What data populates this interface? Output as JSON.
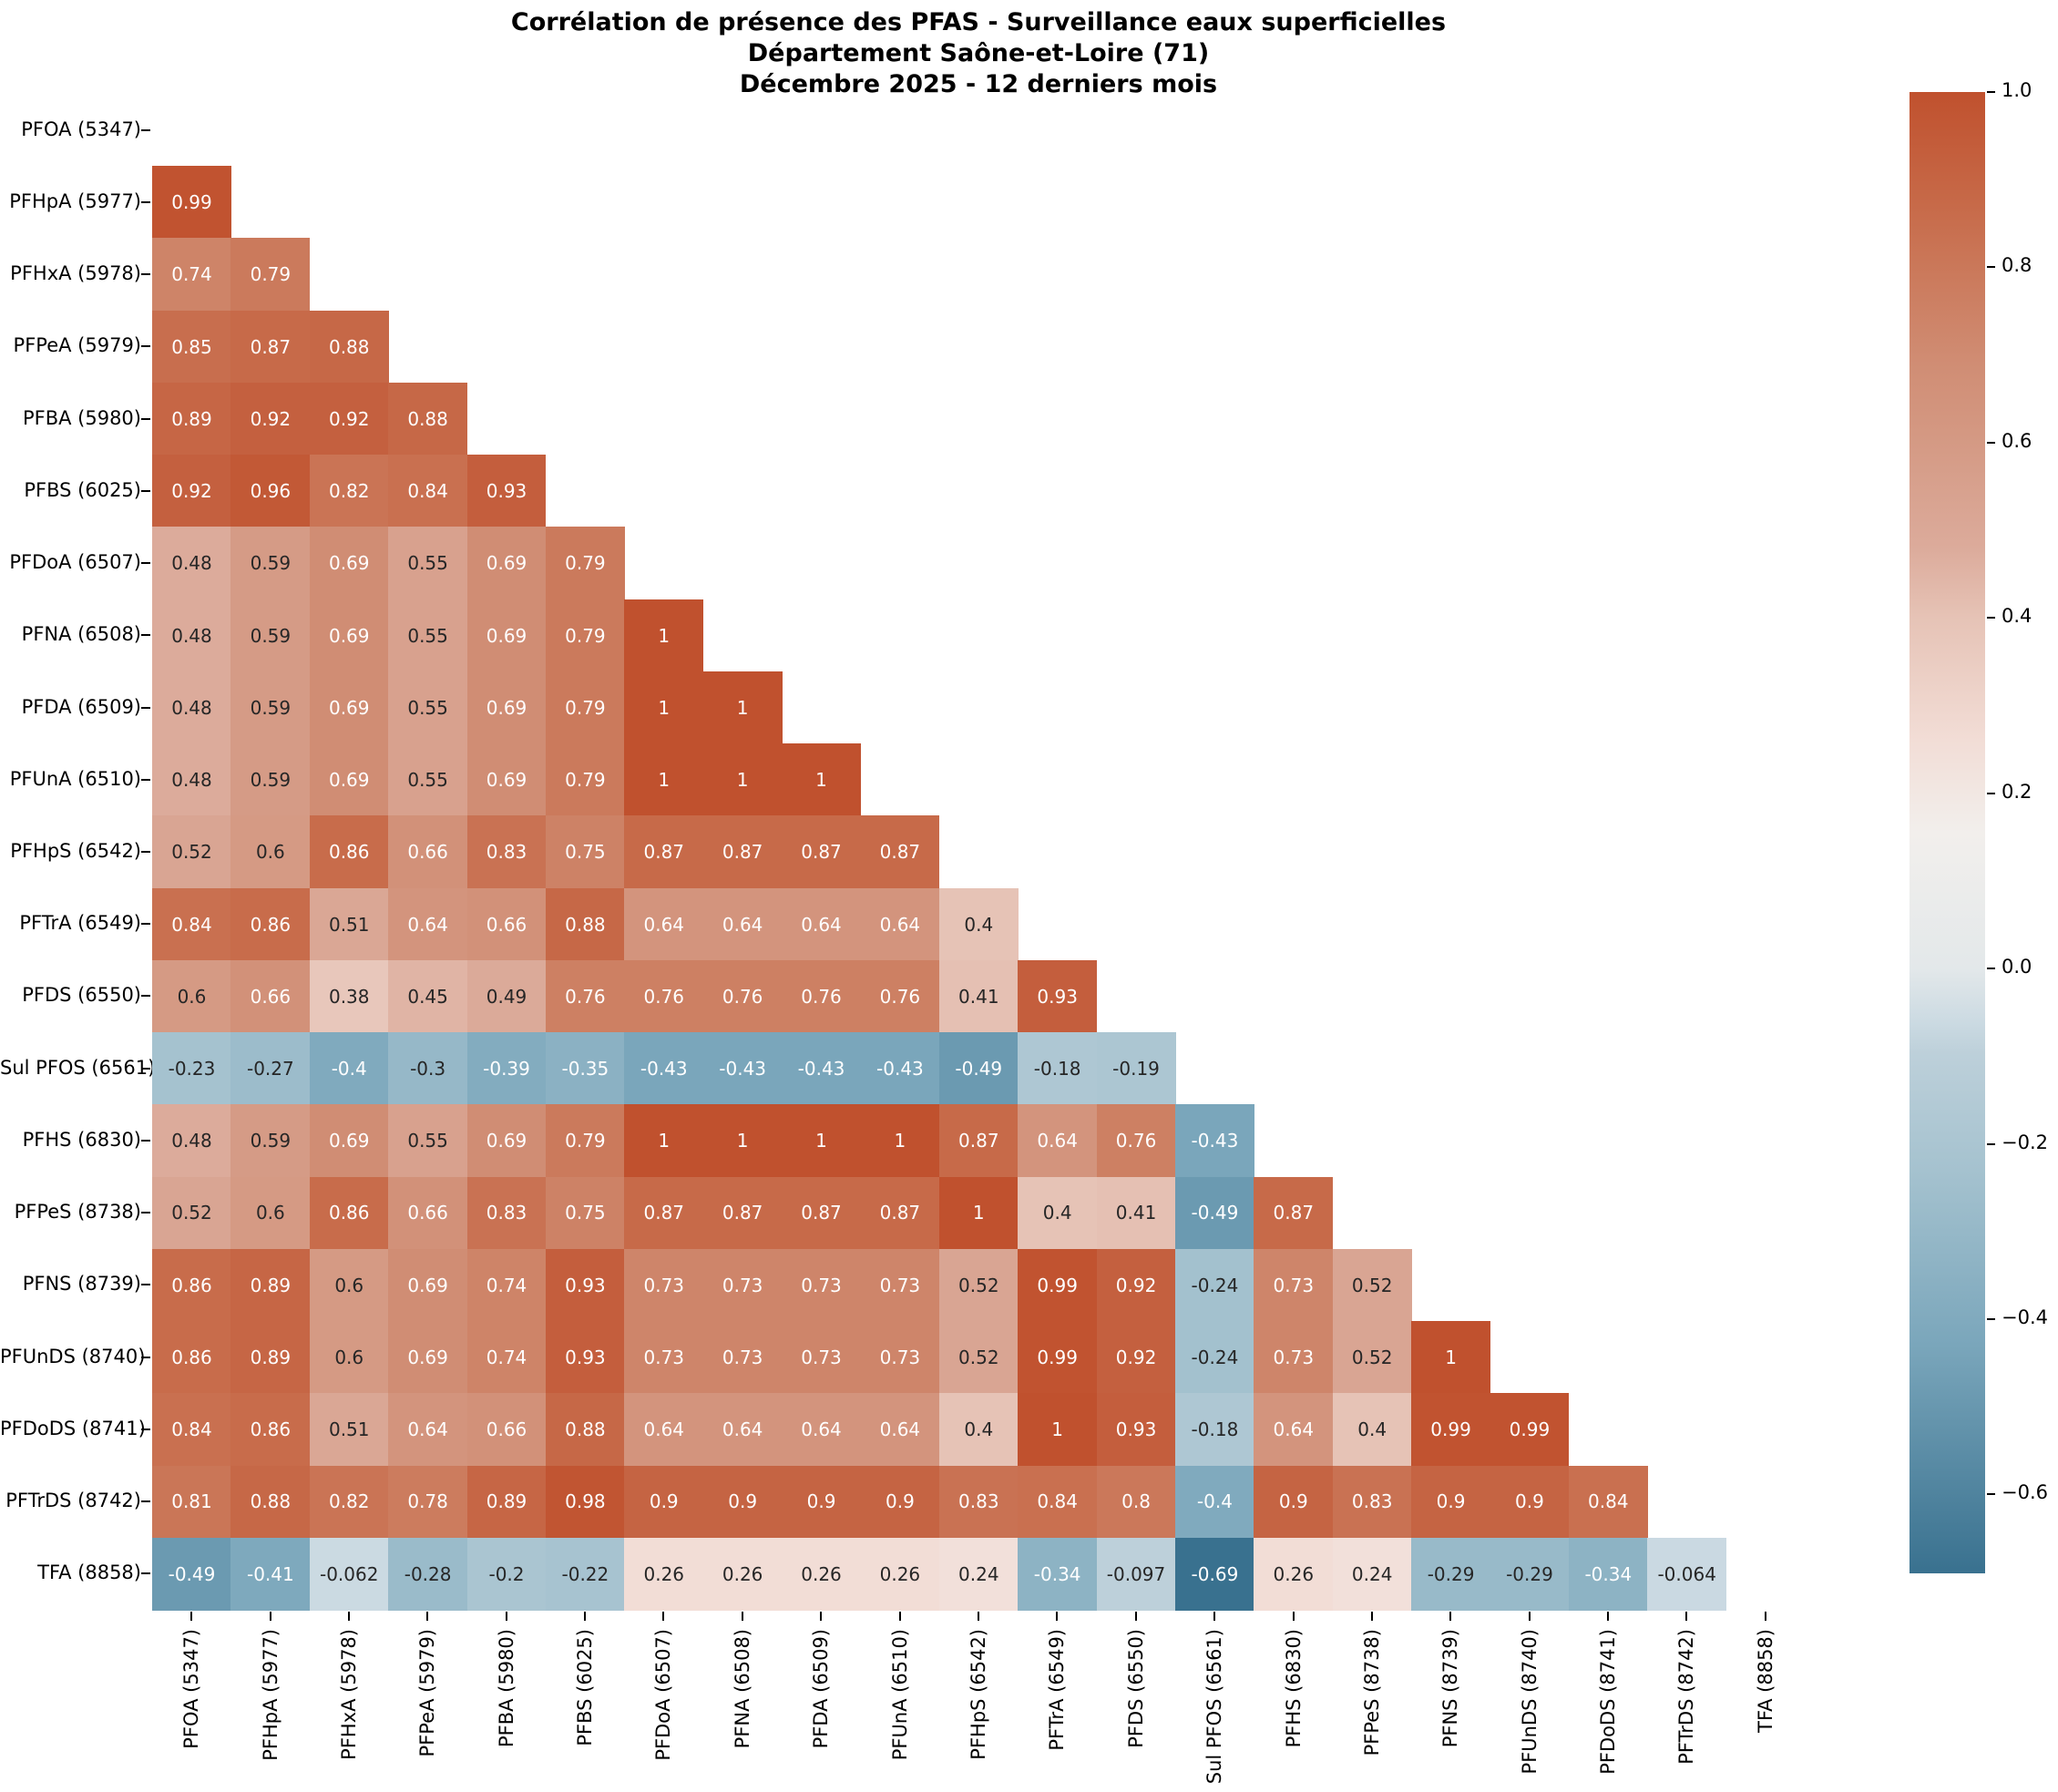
{
  "title": {
    "line1": "Corrélation de présence des PFAS - Surveillance eaux superficielles",
    "line2": "Département Saône-et-Loire (71)",
    "line3": "Décembre 2025 - 12 derniers mois"
  },
  "chart_data": {
    "type": "heatmap",
    "subtype": "correlation-matrix-lower-triangle",
    "title": "Corrélation de présence des PFAS - Surveillance eaux superficielles\nDépartement Saône-et-Loire (71)\nDécembre 2025 - 12 derniers mois",
    "labels": [
      "PFOA (5347)",
      "PFHpA (5977)",
      "PFHxA (5978)",
      "PFPeA (5979)",
      "PFBA (5980)",
      "PFBS (6025)",
      "PFDoA (6507)",
      "PFNA (6508)",
      "PFDA (6509)",
      "PFUnA (6510)",
      "PFHpS (6542)",
      "PFTrA (6549)",
      "PFDS (6550)",
      "Sul PFOS (6561)",
      "PFHS (6830)",
      "PFPeS (8738)",
      "PFNS (8739)",
      "PFUnDS (8740)",
      "PFDoDS (8741)",
      "PFTrDS (8742)",
      "TFA (8858)"
    ],
    "rows": [
      {
        "label": "PFOA (5347)",
        "values": []
      },
      {
        "label": "PFHpA (5977)",
        "values": [
          0.99
        ]
      },
      {
        "label": "PFHxA (5978)",
        "values": [
          0.74,
          0.79
        ]
      },
      {
        "label": "PFPeA (5979)",
        "values": [
          0.85,
          0.87,
          0.88
        ]
      },
      {
        "label": "PFBA (5980)",
        "values": [
          0.89,
          0.92,
          0.92,
          0.88
        ]
      },
      {
        "label": "PFBS (6025)",
        "values": [
          0.92,
          0.96,
          0.82,
          0.84,
          0.93
        ]
      },
      {
        "label": "PFDoA (6507)",
        "values": [
          0.48,
          0.59,
          0.69,
          0.55,
          0.69,
          0.79
        ]
      },
      {
        "label": "PFNA (6508)",
        "values": [
          0.48,
          0.59,
          0.69,
          0.55,
          0.69,
          0.79,
          1
        ]
      },
      {
        "label": "PFDA (6509)",
        "values": [
          0.48,
          0.59,
          0.69,
          0.55,
          0.69,
          0.79,
          1,
          1
        ]
      },
      {
        "label": "PFUnA (6510)",
        "values": [
          0.48,
          0.59,
          0.69,
          0.55,
          0.69,
          0.79,
          1,
          1,
          1
        ]
      },
      {
        "label": "PFHpS (6542)",
        "values": [
          0.52,
          0.6,
          0.86,
          0.66,
          0.83,
          0.75,
          0.87,
          0.87,
          0.87,
          0.87
        ]
      },
      {
        "label": "PFTrA (6549)",
        "values": [
          0.84,
          0.86,
          0.51,
          0.64,
          0.66,
          0.88,
          0.64,
          0.64,
          0.64,
          0.64,
          0.4
        ]
      },
      {
        "label": "PFDS (6550)",
        "values": [
          0.6,
          0.66,
          0.38,
          0.45,
          0.49,
          0.76,
          0.76,
          0.76,
          0.76,
          0.76,
          0.41,
          0.93
        ]
      },
      {
        "label": "Sul PFOS (6561)",
        "values": [
          -0.23,
          -0.27,
          -0.4,
          -0.3,
          -0.39,
          -0.35,
          -0.43,
          -0.43,
          -0.43,
          -0.43,
          -0.49,
          -0.18,
          -0.19
        ]
      },
      {
        "label": "PFHS (6830)",
        "values": [
          0.48,
          0.59,
          0.69,
          0.55,
          0.69,
          0.79,
          1,
          1,
          1,
          1,
          0.87,
          0.64,
          0.76,
          -0.43
        ]
      },
      {
        "label": "PFPeS (8738)",
        "values": [
          0.52,
          0.6,
          0.86,
          0.66,
          0.83,
          0.75,
          0.87,
          0.87,
          0.87,
          0.87,
          1,
          0.4,
          0.41,
          -0.49,
          0.87
        ]
      },
      {
        "label": "PFNS (8739)",
        "values": [
          0.86,
          0.89,
          0.6,
          0.69,
          0.74,
          0.93,
          0.73,
          0.73,
          0.73,
          0.73,
          0.52,
          0.99,
          0.92,
          -0.24,
          0.73,
          0.52
        ]
      },
      {
        "label": "PFUnDS (8740)",
        "values": [
          0.86,
          0.89,
          0.6,
          0.69,
          0.74,
          0.93,
          0.73,
          0.73,
          0.73,
          0.73,
          0.52,
          0.99,
          0.92,
          -0.24,
          0.73,
          0.52,
          1
        ]
      },
      {
        "label": "PFDoDS (8741)",
        "values": [
          0.84,
          0.86,
          0.51,
          0.64,
          0.66,
          0.88,
          0.64,
          0.64,
          0.64,
          0.64,
          0.4,
          1,
          0.93,
          -0.18,
          0.64,
          0.4,
          0.99,
          0.99
        ]
      },
      {
        "label": "PFTrDS (8742)",
        "values": [
          0.81,
          0.88,
          0.82,
          0.78,
          0.89,
          0.98,
          0.9,
          0.9,
          0.9,
          0.9,
          0.83,
          0.84,
          0.8,
          -0.4,
          0.9,
          0.83,
          0.9,
          0.9,
          0.84
        ]
      },
      {
        "label": "TFA (8858)",
        "values": [
          -0.49,
          -0.41,
          -0.062,
          -0.28,
          -0.2,
          -0.22,
          0.26,
          0.26,
          0.26,
          0.26,
          0.24,
          -0.34,
          -0.097,
          -0.69,
          0.26,
          0.24,
          -0.29,
          -0.29,
          -0.34,
          -0.064
        ]
      }
    ],
    "colorbar": {
      "vmin": -0.69,
      "vmax": 1.0,
      "tick_labels": [
        "1.0",
        "0.8",
        "0.6",
        "0.4",
        "0.2",
        "0.0",
        "−0.2",
        "−0.4",
        "−0.6"
      ],
      "tick_values": [
        1.0,
        0.8,
        0.6,
        0.4,
        0.2,
        0.0,
        -0.2,
        -0.4,
        -0.6
      ]
    },
    "colormap_anchors": [
      [
        -0.69,
        "#39718f"
      ],
      [
        -0.43,
        "#7aa6bb"
      ],
      [
        -0.23,
        "#a5c2cf"
      ],
      [
        -0.097,
        "#bdd0da"
      ],
      [
        -0.062,
        "#cbdae2"
      ],
      [
        0.0,
        "#e3e8ea"
      ],
      [
        0.155,
        "#f2efec"
      ],
      [
        0.26,
        "#f2ddd6"
      ],
      [
        0.4,
        "#e6c3b6"
      ],
      [
        0.48,
        "#dcab9b"
      ],
      [
        0.59,
        "#d59b86"
      ],
      [
        0.69,
        "#d08d74"
      ],
      [
        0.79,
        "#cb7a5c"
      ],
      [
        0.87,
        "#c76a49"
      ],
      [
        1.0,
        "#c0512e"
      ]
    ],
    "annotation_text_colors": {
      "light": "#ffffff",
      "dark": "#262626"
    },
    "grid": false,
    "legend_position": "right-colorbar"
  }
}
